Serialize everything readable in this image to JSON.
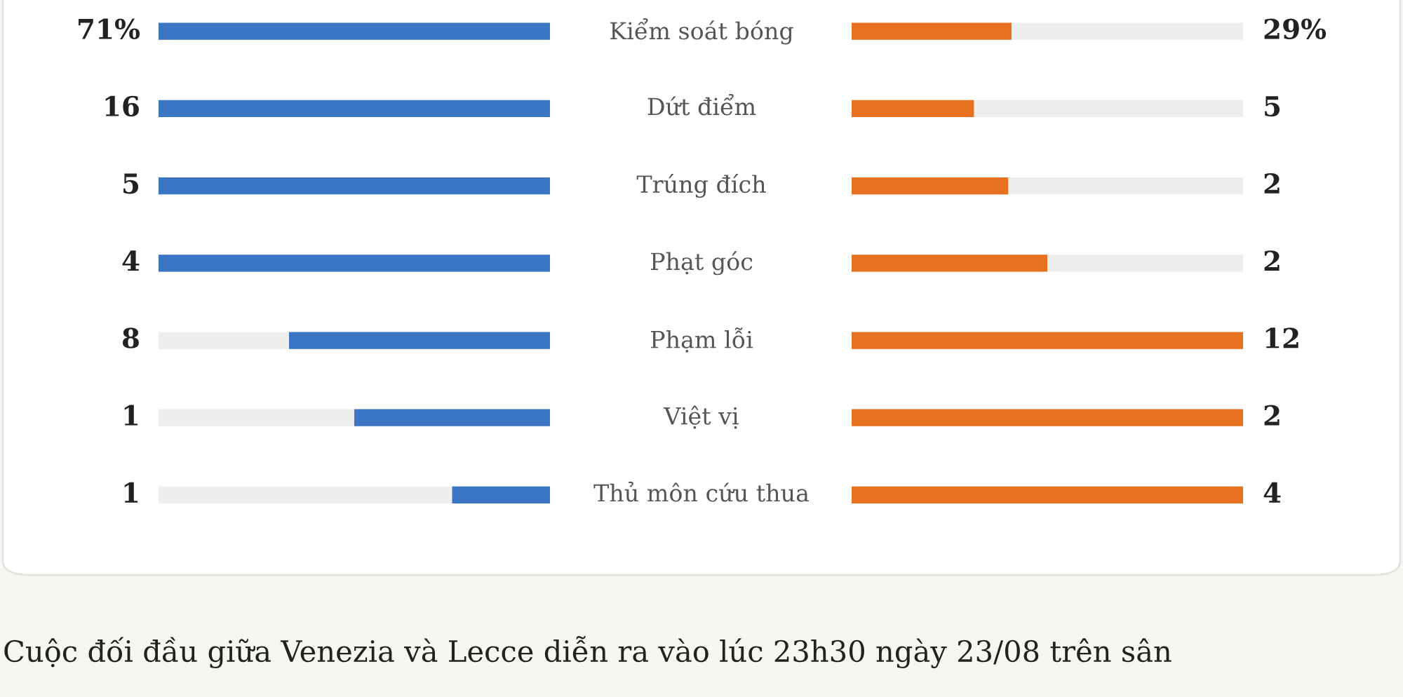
{
  "chart_data": {
    "type": "other",
    "categories": [
      "Kiểm soát bóng",
      "Dứt điểm",
      "Trúng đích",
      "Phạt góc",
      "Phạm lỗi",
      "Việt vị",
      "Thủ môn cứu thua"
    ],
    "series": [
      {
        "color": "#3a76c4",
        "values": [
          71,
          16,
          5,
          4,
          8,
          1,
          1
        ],
        "value_labels": [
          "71%",
          "16",
          "5",
          "4",
          "8",
          "1",
          "1"
        ]
      },
      {
        "color": "#e8711f",
        "values": [
          29,
          5,
          2,
          2,
          12,
          2,
          4
        ],
        "value_labels": [
          "29%",
          "5",
          "2",
          "2",
          "12",
          "2",
          "4"
        ]
      }
    ],
    "annotations": [
      "Cuộc đối đầu giữa Venezia và Lecce diễn ra vào lúc 23h30 ngày 23/08 trên sân"
    ],
    "data_labels": false
  }
}
